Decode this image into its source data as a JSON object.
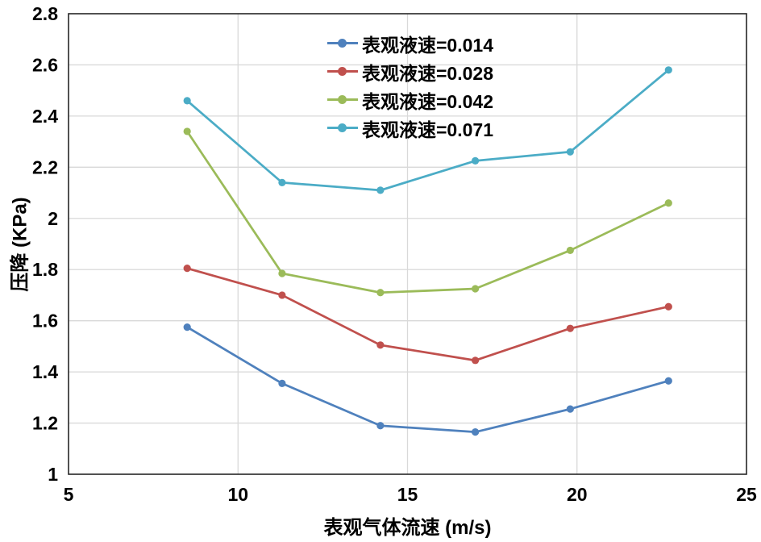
{
  "chart_data": {
    "type": "line",
    "title": "",
    "xlabel": "表观气体流速 (m/s)",
    "ylabel": "压降 (KPa)",
    "xlim": [
      5,
      25
    ],
    "ylim": [
      1,
      2.8
    ],
    "x_ticks": [
      5,
      10,
      15,
      20,
      25
    ],
    "x_tick_labels": [
      "5",
      "10",
      "15",
      "20",
      "25"
    ],
    "y_ticks": [
      1,
      1.2,
      1.4,
      1.6,
      1.8,
      2,
      2.2,
      2.4,
      2.6,
      2.8
    ],
    "y_tick_labels": [
      "1",
      "1.2",
      "1.4",
      "1.6",
      "1.8",
      "2",
      "2.2",
      "2.4",
      "2.6",
      "2.8"
    ],
    "grid": true,
    "legend_position": "inside-top-center",
    "x": [
      8.5,
      11.3,
      14.2,
      17,
      19.8,
      22.7
    ],
    "series": [
      {
        "name": "表观液速=0.014",
        "color": "#4F81BD",
        "values": [
          1.575,
          1.355,
          1.19,
          1.165,
          1.255,
          1.365
        ]
      },
      {
        "name": "表观液速=0.028",
        "color": "#C0504D",
        "values": [
          1.805,
          1.7,
          1.505,
          1.445,
          1.57,
          1.655
        ]
      },
      {
        "name": "表观液速=0.042",
        "color": "#9BBB59",
        "values": [
          2.34,
          1.785,
          1.71,
          1.725,
          1.875,
          2.06
        ]
      },
      {
        "name": "表观液速=0.071",
        "color": "#4BACC6",
        "values": [
          2.46,
          2.14,
          2.11,
          2.225,
          2.26,
          2.58
        ]
      }
    ],
    "colors": {
      "grid": "#D9D9D9",
      "axis": "#262626",
      "text": "#000000",
      "background": "#FFFFFF"
    }
  }
}
